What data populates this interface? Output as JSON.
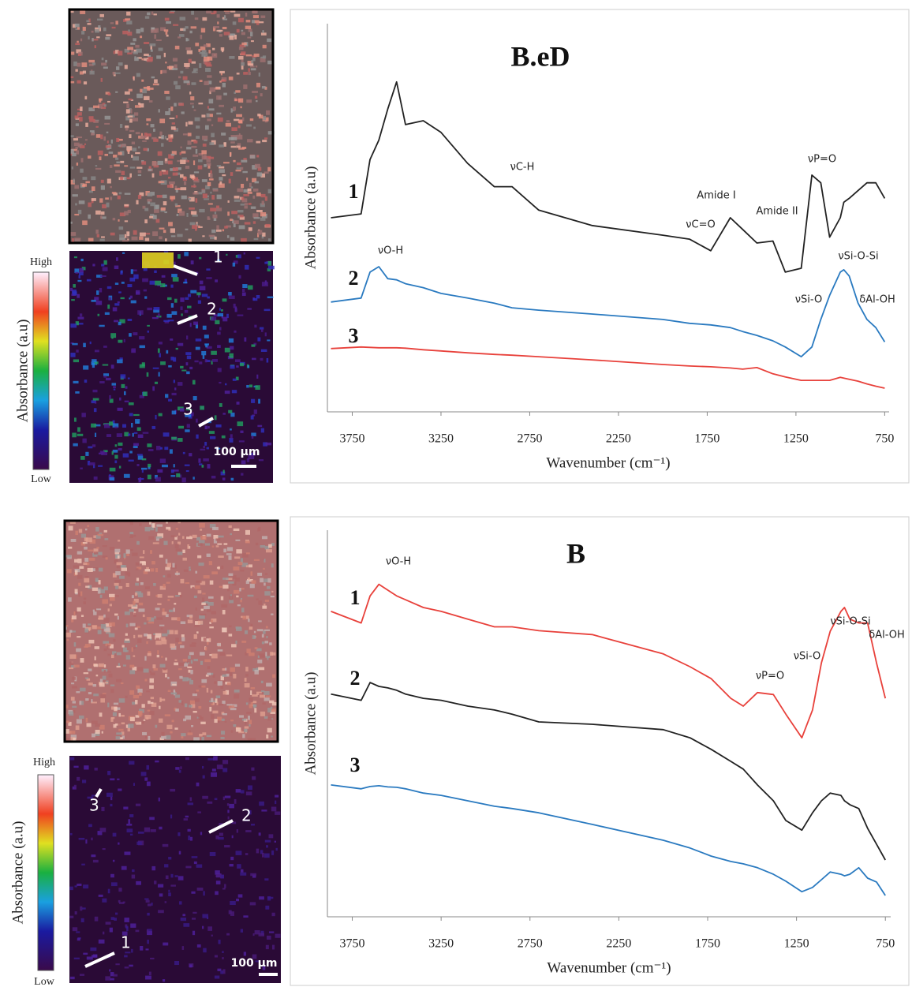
{
  "chart_data": [
    {
      "type": "line",
      "title": "B.eD",
      "x_label": "Wavenumber (cm⁻¹)",
      "y_label": "Absorbance (a.u)",
      "x": [
        3870,
        3700,
        3650,
        3600,
        3550,
        3500,
        3450,
        3350,
        3250,
        3100,
        2950,
        2850,
        2700,
        2400,
        2000,
        1850,
        1730,
        1620,
        1550,
        1470,
        1380,
        1310,
        1220,
        1160,
        1110,
        1060,
        1000,
        980,
        950,
        900,
        850,
        800,
        750
      ],
      "xlim": [
        3890,
        725
      ],
      "xticks": [
        3750,
        3250,
        2750,
        2250,
        1750,
        1250,
        750
      ],
      "ylim": [
        0,
        10
      ],
      "grid": false,
      "series": [
        {
          "name": "1",
          "color": "#222222",
          "values": [
            5.0,
            5.1,
            6.5,
            7.0,
            7.8,
            8.5,
            7.4,
            7.5,
            7.2,
            6.4,
            5.8,
            5.8,
            5.2,
            4.8,
            4.55,
            4.45,
            4.15,
            5.0,
            4.7,
            4.35,
            4.4,
            3.6,
            3.7,
            6.1,
            5.9,
            4.5,
            5.0,
            5.4,
            5.5,
            5.7,
            5.9,
            5.9,
            5.5
          ]
        },
        {
          "name": "2",
          "color": "#2a7ac0",
          "values": [
            2.83,
            2.93,
            3.6,
            3.74,
            3.43,
            3.4,
            3.3,
            3.2,
            3.05,
            2.93,
            2.8,
            2.68,
            2.62,
            2.52,
            2.38,
            2.28,
            2.24,
            2.17,
            2.07,
            1.97,
            1.83,
            1.67,
            1.42,
            1.67,
            2.38,
            3.0,
            3.6,
            3.66,
            3.5,
            2.8,
            2.38,
            2.17,
            1.8
          ]
        },
        {
          "name": "3",
          "color": "#e8413b",
          "values": [
            1.63,
            1.67,
            1.66,
            1.65,
            1.65,
            1.65,
            1.64,
            1.6,
            1.57,
            1.52,
            1.48,
            1.46,
            1.42,
            1.34,
            1.22,
            1.18,
            1.16,
            1.13,
            1.1,
            1.14,
            0.98,
            0.9,
            0.81,
            0.81,
            0.81,
            0.81,
            0.89,
            0.87,
            0.84,
            0.79,
            0.72,
            0.66,
            0.61
          ]
        }
      ],
      "annotations": [
        "νO-H",
        "νC-H",
        "Amide I",
        "νC=O",
        "Amide II",
        "νP=O",
        "νSi-O-Si",
        "νSi-O",
        "δAl-OH"
      ]
    },
    {
      "type": "line",
      "title": "B",
      "x_label": "Wavenumber (cm⁻¹)",
      "y_label": "Absorbance (a.u)",
      "x": [
        3870,
        3700,
        3650,
        3600,
        3550,
        3500,
        3450,
        3350,
        3250,
        3100,
        2950,
        2850,
        2700,
        2400,
        2000,
        1850,
        1730,
        1620,
        1550,
        1470,
        1380,
        1310,
        1220,
        1160,
        1110,
        1060,
        1000,
        980,
        950,
        900,
        850,
        800,
        750
      ],
      "xlim": [
        3890,
        720
      ],
      "xticks": [
        3750,
        3250,
        2750,
        2250,
        1750,
        1250,
        750
      ],
      "ylim": [
        0,
        10
      ],
      "grid": false,
      "series": [
        {
          "name": "1",
          "color": "#e8413b",
          "values": [
            7.9,
            7.6,
            8.3,
            8.6,
            8.45,
            8.3,
            8.2,
            8.0,
            7.9,
            7.7,
            7.5,
            7.5,
            7.4,
            7.3,
            6.8,
            6.47,
            6.16,
            5.65,
            5.45,
            5.8,
            5.75,
            5.24,
            4.63,
            5.35,
            6.57,
            7.39,
            7.9,
            8.0,
            7.7,
            7.6,
            7.6,
            6.57,
            5.65
          ]
        },
        {
          "name": "2",
          "color": "#222222",
          "values": [
            5.76,
            5.6,
            6.06,
            5.96,
            5.92,
            5.86,
            5.76,
            5.65,
            5.6,
            5.45,
            5.35,
            5.24,
            5.04,
            4.98,
            4.84,
            4.63,
            4.33,
            4.02,
            3.82,
            3.41,
            3.0,
            2.49,
            2.24,
            2.69,
            3.0,
            3.2,
            3.14,
            3.0,
            2.9,
            2.8,
            2.29,
            1.88,
            1.47
          ]
        },
        {
          "name": "3",
          "color": "#2a7ac0",
          "values": [
            3.41,
            3.31,
            3.37,
            3.39,
            3.36,
            3.35,
            3.31,
            3.2,
            3.14,
            3.0,
            2.86,
            2.8,
            2.69,
            2.39,
            1.98,
            1.78,
            1.57,
            1.43,
            1.37,
            1.27,
            1.1,
            0.92,
            0.65,
            0.76,
            0.96,
            1.16,
            1.1,
            1.06,
            1.1,
            1.27,
            1.0,
            0.9,
            0.55
          ]
        }
      ],
      "annotations": [
        "νO-H",
        "νP=O",
        "νSi-O",
        "νSi-O-Si",
        "δAl-OH"
      ]
    }
  ],
  "maps": [
    {
      "colorbar_high": "High",
      "colorbar_low": "Low",
      "colorbar_label": "Absorbance (a.u)",
      "scale_bar": "100 µm",
      "points": [
        "1",
        "2",
        "3"
      ]
    },
    {
      "colorbar_high": "High",
      "colorbar_low": "Low",
      "colorbar_label": "Absorbance (a.u)",
      "scale_bar": "100 µm",
      "points": [
        "3",
        "2",
        "1"
      ]
    }
  ]
}
